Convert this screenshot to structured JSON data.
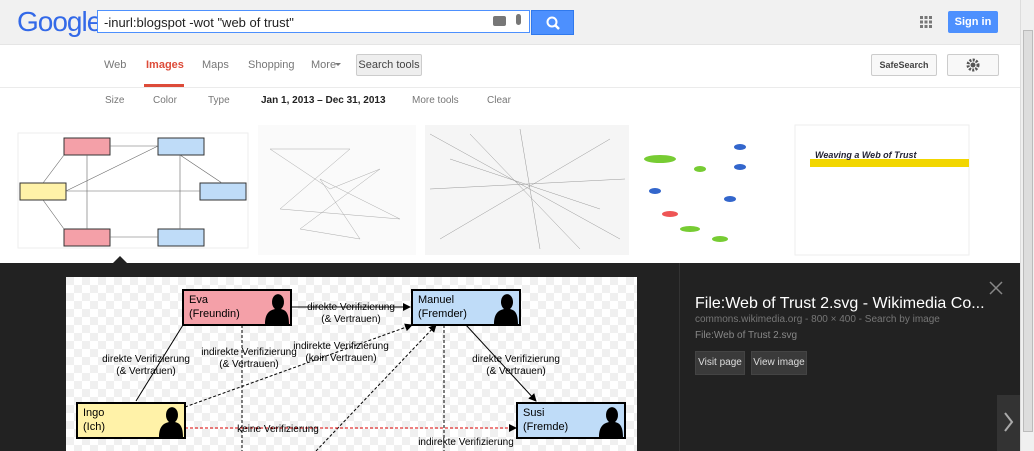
{
  "header": {
    "logo": "Google",
    "query": "-inurl:blogspot -wot \"web of trust\"",
    "sign_in": "Sign in"
  },
  "nav": {
    "tabs": [
      "Web",
      "Images",
      "Maps",
      "Shopping",
      "More"
    ],
    "search_tools": "Search tools",
    "safesearch": "SafeSearch"
  },
  "tools": [
    "Size",
    "Color",
    "Type",
    "Jan 1, 2013 – Dec 31, 2013",
    "More tools"
  ],
  "clear": "Clear",
  "thumbnails": {
    "slide_title": "Weaving a Web of Trust"
  },
  "preview": {
    "title": "File:Web of Trust 2.svg - Wikimedia Co...",
    "meta": "commons.wikimedia.org - 800 × 400 - Search by image",
    "file": "File:Web of Trust 2.svg",
    "visit_page": "Visit page",
    "view_image": "View image",
    "diagram": {
      "nodes": [
        [
          "Eva",
          "(Freundin)"
        ],
        [
          "Manuel",
          "(Fremder)"
        ],
        [
          "Ingo",
          "(Ich)"
        ],
        [
          "Susi",
          "(Fremde)"
        ]
      ],
      "edges": [
        [
          "direkte Verifizierung",
          "(& Vertrauen)"
        ],
        [
          "direkte Verifizierung",
          "(& Vertrauen)"
        ],
        [
          "indirekte Verifizierung",
          "(& Vertrauen)"
        ],
        [
          "indirekte Verifizierung",
          "(kein Vertrauen)"
        ],
        [
          "direkte Verifizierung",
          "(& Vertrauen)"
        ],
        [
          "keine Verifizierung"
        ],
        [
          "indirekte Verifizierung"
        ]
      ]
    }
  }
}
